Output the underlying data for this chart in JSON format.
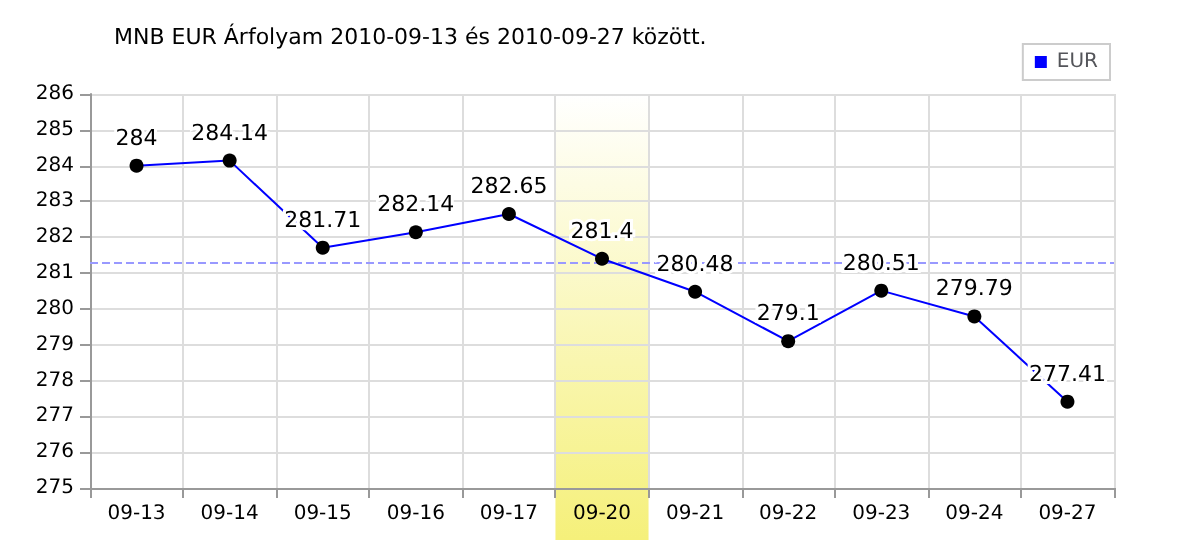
{
  "chart_data": {
    "type": "line",
    "title": "MNB EUR Árfolyam 2010-09-13 és 2010-09-27 között.",
    "categories": [
      "09-13",
      "09-14",
      "09-15",
      "09-16",
      "09-17",
      "09-20",
      "09-21",
      "09-22",
      "09-23",
      "09-24",
      "09-27"
    ],
    "series": [
      {
        "name": "EUR",
        "color": "#0000ff",
        "values": [
          284,
          284.14,
          281.71,
          282.14,
          282.65,
          281.4,
          280.48,
          279.1,
          280.51,
          279.79,
          277.41
        ]
      }
    ],
    "ylim": [
      275,
      286
    ],
    "yticks": [
      275,
      276,
      277,
      278,
      279,
      280,
      281,
      282,
      283,
      284,
      285,
      286
    ],
    "grid": true,
    "legend": "top right",
    "marker": "circle",
    "line_style": "solid",
    "data_labels": true,
    "ref_lines": [
      {
        "axis": "y",
        "value": 281.3,
        "color": "#9999ff",
        "line_style": "dashed"
      }
    ],
    "bands": [
      {
        "axis": "x",
        "from": "09-20",
        "to": "09-20",
        "color": "#f5f07a"
      }
    ]
  }
}
